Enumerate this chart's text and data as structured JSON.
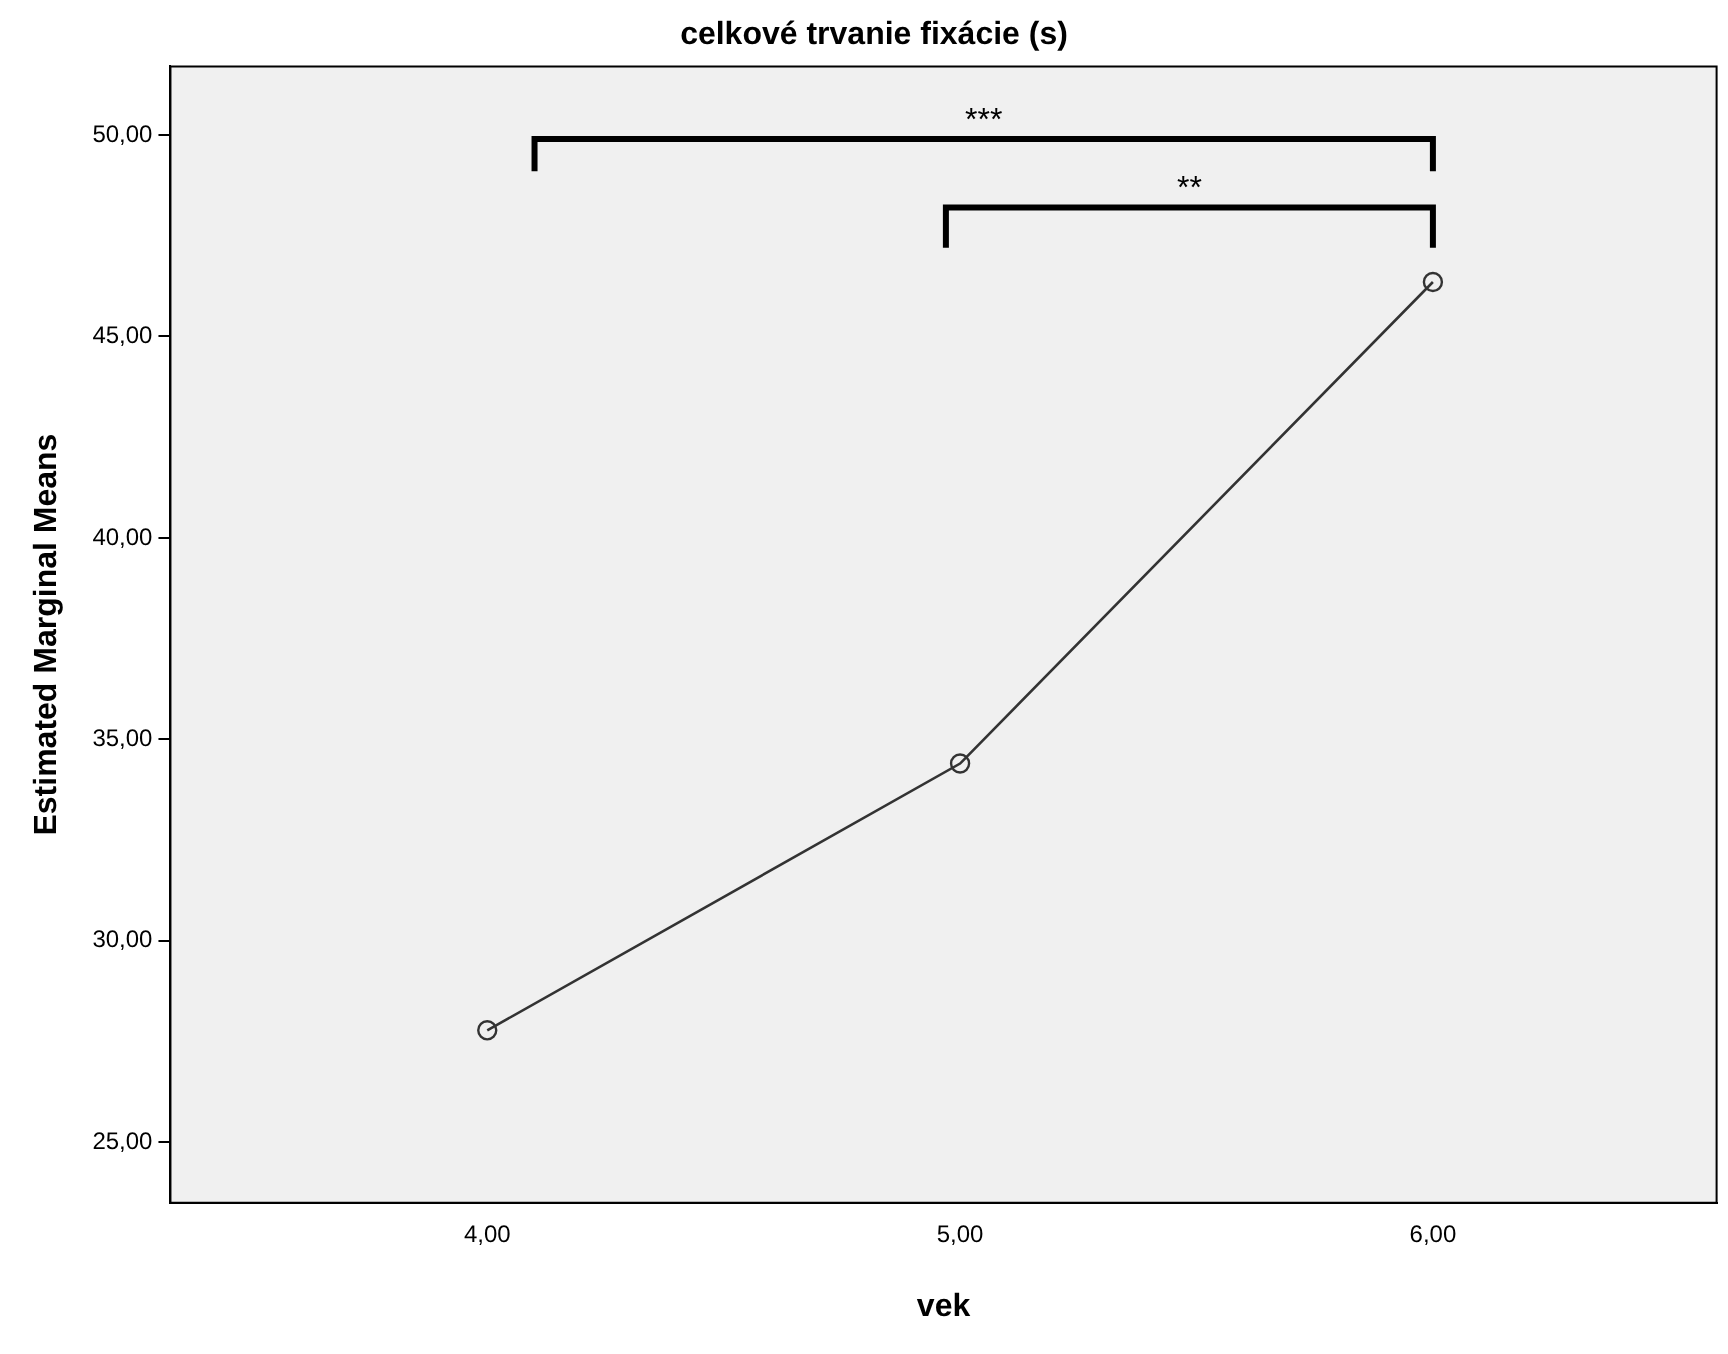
{
  "chart_data": {
    "type": "line",
    "title": "celkové trvanie fixácie (s)",
    "xlabel": "vek",
    "ylabel": "Estimated Marginal Means",
    "x": [
      4,
      5,
      6
    ],
    "values": [
      27.78,
      34.4,
      46.35
    ],
    "color": "#333333",
    "marker": "circle",
    "grid": false,
    "legend": false,
    "xlim": [
      3.33,
      6.6
    ],
    "xticks": [
      {
        "value": 4,
        "label": "4,00"
      },
      {
        "value": 5,
        "label": "5,00"
      },
      {
        "value": 6,
        "label": "6,00"
      }
    ],
    "ylim": [
      23.5,
      51.7
    ],
    "yticks": [
      {
        "value": 25,
        "label": "25,00"
      },
      {
        "value": 30,
        "label": "30,00"
      },
      {
        "value": 35,
        "label": "35,00"
      },
      {
        "value": 40,
        "label": "40,00"
      },
      {
        "value": 45,
        "label": "45,00"
      },
      {
        "value": 50,
        "label": "50,00"
      }
    ],
    "annotations": [
      "***",
      "**"
    ]
  }
}
